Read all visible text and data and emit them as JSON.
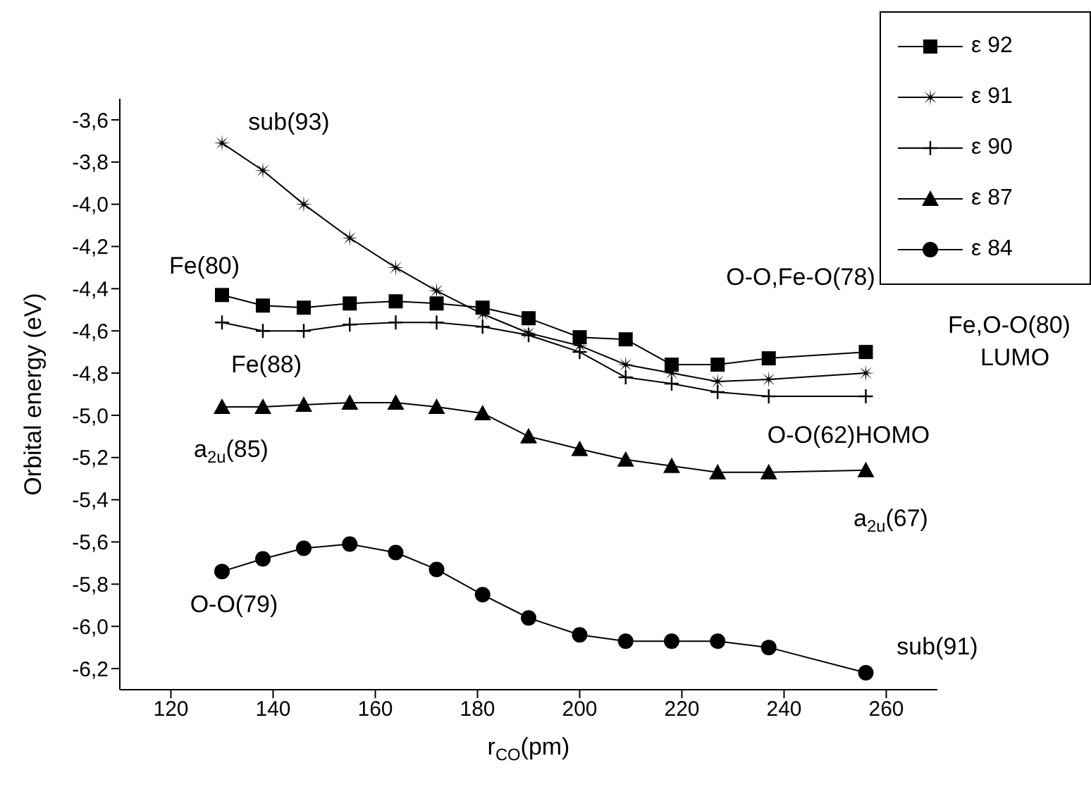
{
  "chart_data": {
    "type": "line",
    "xlabel": "r$_{CO}$(pm)",
    "ylabel": "Orbital energy (eV)",
    "x": [
      130,
      138,
      146,
      155,
      164,
      172,
      181,
      190,
      200,
      209,
      218,
      227,
      237,
      256
    ],
    "xlim": [
      110,
      270
    ],
    "xticks": [
      120,
      140,
      160,
      180,
      200,
      220,
      240,
      260
    ],
    "ylim": [
      -6.3,
      -3.5
    ],
    "yticks": [
      {
        "value": -6.2,
        "label": "-6,2"
      },
      {
        "value": -6.0,
        "label": "-6,0"
      },
      {
        "value": -5.8,
        "label": "-5,8"
      },
      {
        "value": -5.6,
        "label": "-5,6"
      },
      {
        "value": -5.4,
        "label": "-5,4"
      },
      {
        "value": -5.2,
        "label": "-5,2"
      },
      {
        "value": -5.0,
        "label": "-5,0"
      },
      {
        "value": -4.8,
        "label": "-4,8"
      },
      {
        "value": -4.6,
        "label": "-4,6"
      },
      {
        "value": -4.4,
        "label": "-4,4"
      },
      {
        "value": -4.2,
        "label": "-4,2"
      },
      {
        "value": -4.0,
        "label": "-4,0"
      },
      {
        "value": -3.8,
        "label": "-3,8"
      },
      {
        "value": -3.6,
        "label": "-3,6"
      }
    ],
    "legend": "top right",
    "grid": false,
    "series": [
      {
        "name": "ε 92",
        "color": "#000000",
        "marker": "square",
        "values": [
          -4.43,
          -4.48,
          -4.49,
          -4.47,
          -4.46,
          -4.47,
          -4.49,
          -4.54,
          -4.63,
          -4.64,
          -4.76,
          -4.76,
          -4.73,
          -4.7
        ]
      },
      {
        "name": "ε 91",
        "color": "#000000",
        "marker": "star",
        "values": [
          -3.71,
          -3.84,
          -4.0,
          -4.16,
          -4.3,
          -4.41,
          -4.52,
          -4.61,
          -4.67,
          -4.76,
          -4.8,
          -4.84,
          -4.83,
          -4.8
        ]
      },
      {
        "name": "ε 90",
        "color": "#000000",
        "marker": "cross",
        "values": [
          -4.56,
          -4.6,
          -4.6,
          -4.57,
          -4.56,
          -4.56,
          -4.58,
          -4.62,
          -4.7,
          -4.82,
          -4.85,
          -4.89,
          -4.91,
          -4.91
        ]
      },
      {
        "name": "ε 87",
        "color": "#000000",
        "marker": "triangle",
        "values": [
          -4.96,
          -4.96,
          -4.95,
          -4.94,
          -4.94,
          -4.96,
          -4.99,
          -5.1,
          -5.16,
          -5.21,
          -5.24,
          -5.27,
          -5.27,
          -5.26
        ]
      },
      {
        "name": "ε 84",
        "color": "#000000",
        "marker": "circle",
        "values": [
          -5.74,
          -5.68,
          -5.63,
          -5.61,
          -5.65,
          -5.73,
          -5.85,
          -5.96,
          -6.04,
          -6.07,
          -6.07,
          -6.07,
          -6.1,
          -6.22
        ]
      }
    ],
    "annotations": [
      "sub(93)",
      "Fe(80)",
      "Fe(88)",
      "a$_{2u}$(85)",
      "O-O(79)",
      "O-O,Fe-O(78)",
      "Fe,O-O(80)",
      "LUMO",
      "O-O(62)HOMO",
      "a$_{2u}$(67)",
      "sub(91)"
    ]
  }
}
